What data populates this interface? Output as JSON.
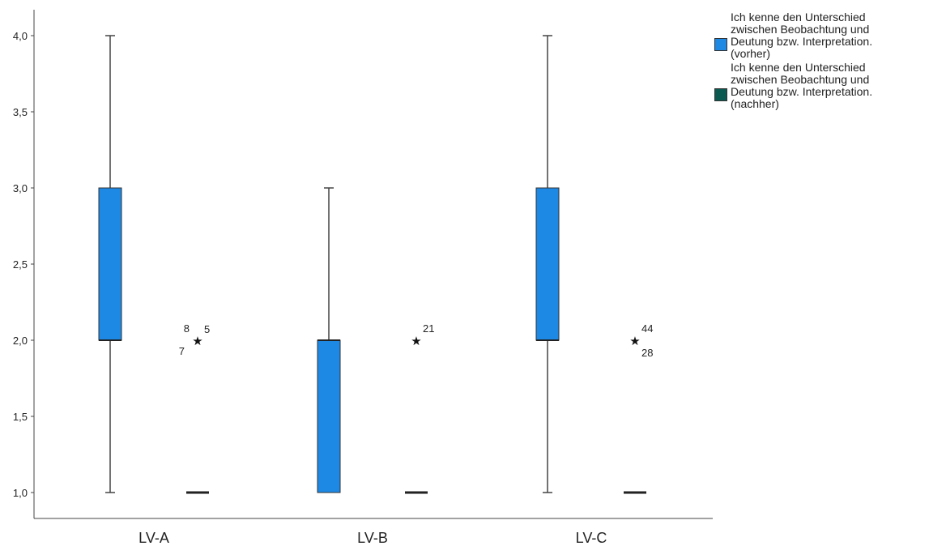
{
  "chart_data": {
    "type": "boxplot",
    "categories": [
      "LV-A",
      "LV-B",
      "LV-C"
    ],
    "yticks": [
      "1,0",
      "1,5",
      "2,0",
      "2,5",
      "3,0",
      "3,5",
      "4,0"
    ],
    "ylim": [
      1.0,
      4.0
    ],
    "legend_position": "top-right",
    "series": [
      {
        "name": "Ich kenne den Unterschied zwischen Beobachtung und Deutung bzw. Interpretation. (vorher)",
        "color": "#1e88e5",
        "boxes": [
          {
            "category": "LV-A",
            "min": 1.0,
            "q1": 2.0,
            "median": 2.0,
            "q3": 3.0,
            "max": 4.0,
            "outliers": []
          },
          {
            "category": "LV-B",
            "min": 1.0,
            "q1": 1.0,
            "median": 2.0,
            "q3": 2.0,
            "max": 3.0,
            "outliers": []
          },
          {
            "category": "LV-C",
            "min": 1.0,
            "q1": 2.0,
            "median": 2.0,
            "q3": 3.0,
            "max": 4.0,
            "outliers": []
          }
        ]
      },
      {
        "name": "Ich kenne den Unterschied zwischen Beobachtung und Deutung bzw. Interpretation. (nachher)",
        "color": "#0b5a52",
        "boxes": [
          {
            "category": "LV-A",
            "min": 1.0,
            "q1": 1.0,
            "median": 1.0,
            "q3": 1.0,
            "max": 1.0,
            "outliers": [
              {
                "value": 2.0,
                "symbol": "★",
                "labels": [
                  "8",
                  "5",
                  "7"
                ]
              }
            ]
          },
          {
            "category": "LV-B",
            "min": 1.0,
            "q1": 1.0,
            "median": 1.0,
            "q3": 1.0,
            "max": 1.0,
            "outliers": [
              {
                "value": 2.0,
                "symbol": "★",
                "labels": [
                  "21"
                ]
              }
            ]
          },
          {
            "category": "LV-C",
            "min": 1.0,
            "q1": 1.0,
            "median": 1.0,
            "q3": 1.0,
            "max": 1.0,
            "outliers": [
              {
                "value": 2.0,
                "symbol": "★",
                "labels": [
                  "44",
                  "28"
                ]
              }
            ]
          }
        ]
      }
    ]
  },
  "legend": {
    "items": [
      {
        "line1": "Ich kenne den Unterschied",
        "line2": "zwischen Beobachtung und",
        "line3": "Deutung bzw. Interpretation.",
        "line4": "(vorher)",
        "color": "#1e88e5"
      },
      {
        "line1": "Ich kenne den Unterschied",
        "line2": "zwischen Beobachtung und",
        "line3": "Deutung bzw. Interpretation.",
        "line4": "(nachher)",
        "color": "#0b5a52"
      }
    ]
  }
}
